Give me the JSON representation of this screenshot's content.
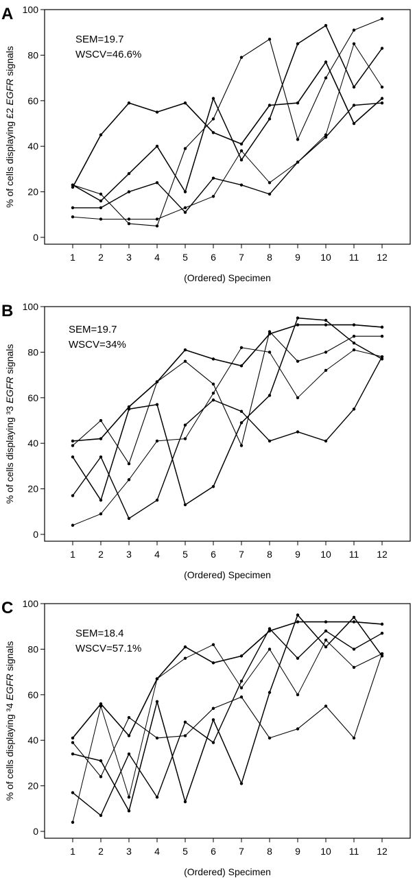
{
  "chart_data": [
    {
      "type": "line",
      "panel_label": "A",
      "annotations": [
        "SEM=19.7",
        "WSCV=46.6%"
      ],
      "xlabel": "(Ordered) Specimen",
      "ylabel_parts": [
        "% of cells displaying £2 ",
        "EGFR",
        " signals"
      ],
      "x": [
        1,
        2,
        3,
        4,
        5,
        6,
        7,
        8,
        9,
        10,
        11,
        12
      ],
      "xlim": [
        0,
        13
      ],
      "ylim": [
        -3,
        100
      ],
      "yticks": [
        0,
        20,
        40,
        60,
        80,
        100
      ],
      "grid": false,
      "series": [
        {
          "values": [
            22,
            45,
            59,
            55,
            59,
            46,
            41,
            58,
            59,
            77,
            50,
            61
          ]
        },
        {
          "values": [
            23,
            19,
            6,
            5,
            39,
            52,
            79,
            87,
            43,
            70,
            91,
            96
          ]
        },
        {
          "values": [
            13,
            13,
            20,
            24,
            11,
            26,
            23,
            19,
            33,
            44,
            58,
            59
          ]
        },
        {
          "values": [
            23,
            16,
            28,
            40,
            20,
            61,
            34,
            52,
            85,
            93,
            66,
            83
          ]
        },
        {
          "values": [
            9,
            8,
            8,
            8,
            13,
            18,
            38,
            24,
            33,
            45,
            85,
            66
          ]
        }
      ]
    },
    {
      "type": "line",
      "panel_label": "B",
      "annotations": [
        "SEM=19.7",
        "WSCV=34%"
      ],
      "xlabel": "(Ordered) Specimen",
      "ylabel_parts": [
        "% of cells displaying ³3 ",
        "EGFR",
        " signals"
      ],
      "x": [
        1,
        2,
        3,
        4,
        5,
        6,
        7,
        8,
        9,
        10,
        11,
        12
      ],
      "xlim": [
        0,
        13
      ],
      "ylim": [
        -3,
        100
      ],
      "yticks": [
        0,
        20,
        40,
        60,
        80,
        100
      ],
      "grid": false,
      "series": [
        {
          "values": [
            41,
            42,
            56,
            67,
            81,
            77,
            74,
            88,
            92,
            92,
            92,
            91
          ]
        },
        {
          "values": [
            39,
            50,
            31,
            67,
            76,
            66,
            39,
            89,
            76,
            80,
            87,
            87
          ]
        },
        {
          "values": [
            17,
            34,
            7,
            15,
            48,
            59,
            54,
            41,
            45,
            41,
            55,
            78
          ]
        },
        {
          "values": [
            34,
            15,
            55,
            57,
            13,
            21,
            49,
            61,
            95,
            94,
            84,
            77
          ]
        },
        {
          "values": [
            4,
            9,
            24,
            41,
            42,
            62,
            82,
            80,
            60,
            72,
            81,
            78
          ]
        }
      ]
    },
    {
      "type": "line",
      "panel_label": "C",
      "annotations": [
        "SEM=18.4",
        "WSCV=57.1%"
      ],
      "xlabel": "(Ordered) Specimen",
      "ylabel_parts": [
        "% of cells displaying ³4 ",
        "EGFR",
        " signals"
      ],
      "x": [
        1,
        2,
        3,
        4,
        5,
        6,
        7,
        8,
        9,
        10,
        11,
        12
      ],
      "xlim": [
        0,
        13
      ],
      "ylim": [
        -3,
        100
      ],
      "yticks": [
        0,
        20,
        40,
        60,
        80,
        100
      ],
      "grid": false,
      "series": [
        {
          "values": [
            41,
            56,
            42,
            67,
            81,
            74,
            77,
            88,
            92,
            92,
            92,
            91
          ]
        },
        {
          "values": [
            39,
            24,
            50,
            41,
            42,
            54,
            59,
            41,
            45,
            55,
            41,
            78
          ]
        },
        {
          "values": [
            17,
            7,
            34,
            15,
            48,
            39,
            66,
            89,
            76,
            88,
            80,
            87
          ]
        },
        {
          "values": [
            34,
            31,
            9,
            57,
            13,
            49,
            21,
            61,
            95,
            81,
            94,
            77
          ]
        },
        {
          "values": [
            4,
            55,
            15,
            67,
            76,
            82,
            63,
            80,
            60,
            84,
            72,
            78
          ]
        }
      ]
    }
  ]
}
